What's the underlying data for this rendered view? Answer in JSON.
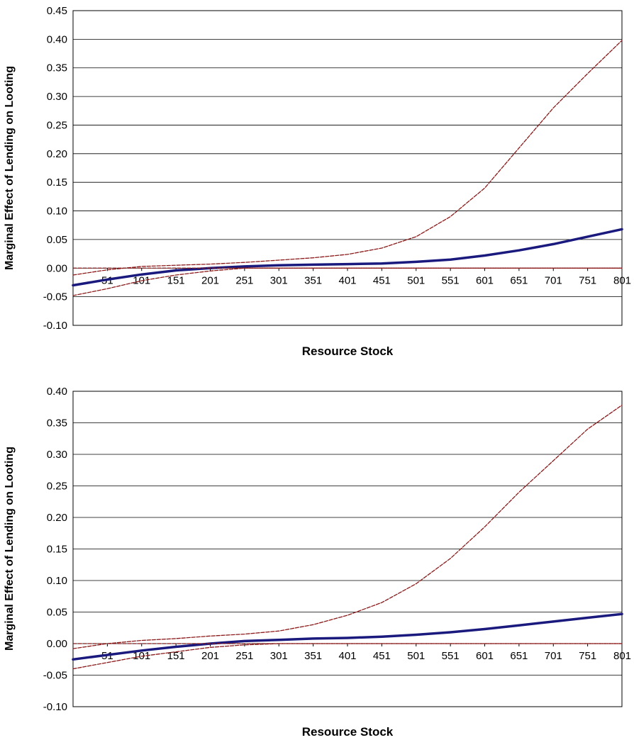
{
  "chart_data": [
    {
      "type": "line",
      "xlabel": "Resource Stock",
      "ylabel": "Marginal Effect of Lending on Looting",
      "ylim": [
        -0.1,
        0.45
      ],
      "xlim": [
        1,
        801
      ],
      "yticks": [
        "-0.10",
        "-0.05",
        "0.00",
        "0.05",
        "0.10",
        "0.15",
        "0.20",
        "0.25",
        "0.30",
        "0.35",
        "0.40",
        "0.45"
      ],
      "xticks": [
        "51",
        "101",
        "151",
        "201",
        "251",
        "301",
        "351",
        "401",
        "451",
        "501",
        "551",
        "601",
        "651",
        "701",
        "751",
        "801"
      ],
      "grid": true,
      "colors": {
        "estimate": "#1a1a7e",
        "bounds": "#8b1a1a"
      },
      "x": [
        1,
        51,
        101,
        151,
        201,
        251,
        301,
        351,
        401,
        451,
        501,
        551,
        601,
        651,
        701,
        751,
        801
      ],
      "series": [
        {
          "role": "estimate",
          "values": [
            -0.03,
            -0.02,
            -0.011,
            -0.004,
            0.0,
            0.003,
            0.005,
            0.006,
            0.007,
            0.008,
            0.011,
            0.015,
            0.022,
            0.031,
            0.042,
            0.055,
            0.068
          ]
        },
        {
          "role": "upper-bound",
          "values": [
            -0.012,
            -0.003,
            0.003,
            0.005,
            0.007,
            0.01,
            0.014,
            0.018,
            0.024,
            0.035,
            0.055,
            0.09,
            0.14,
            0.21,
            0.28,
            0.34,
            0.398
          ]
        },
        {
          "role": "lower-bound",
          "values": [
            -0.048,
            -0.036,
            -0.022,
            -0.012,
            -0.005,
            0.0,
            0.0,
            0.0,
            0.0,
            0.0,
            0.0,
            0.0,
            0.0,
            0.0,
            0.0,
            0.0,
            0.0
          ]
        }
      ]
    },
    {
      "type": "line",
      "xlabel": "Resource Stock",
      "ylabel": "Marginal Effect of Lending on Looting",
      "ylim": [
        -0.1,
        0.4
      ],
      "xlim": [
        1,
        801
      ],
      "yticks": [
        "-0.10",
        "-0.05",
        "0.00",
        "0.05",
        "0.10",
        "0.15",
        "0.20",
        "0.25",
        "0.30",
        "0.35",
        "0.40"
      ],
      "xticks": [
        "51",
        "101",
        "151",
        "201",
        "251",
        "301",
        "351",
        "401",
        "451",
        "501",
        "551",
        "601",
        "651",
        "701",
        "751",
        "801"
      ],
      "grid": true,
      "colors": {
        "estimate": "#1a1a7e",
        "bounds": "#8b1a1a"
      },
      "x": [
        1,
        51,
        101,
        151,
        201,
        251,
        301,
        351,
        401,
        451,
        501,
        551,
        601,
        651,
        701,
        751,
        801
      ],
      "series": [
        {
          "role": "estimate",
          "values": [
            -0.025,
            -0.018,
            -0.011,
            -0.005,
            0.0,
            0.004,
            0.006,
            0.008,
            0.009,
            0.011,
            0.014,
            0.018,
            0.023,
            0.029,
            0.035,
            0.041,
            0.047
          ]
        },
        {
          "role": "upper-bound",
          "values": [
            -0.008,
            0.0,
            0.005,
            0.008,
            0.012,
            0.015,
            0.02,
            0.03,
            0.045,
            0.065,
            0.095,
            0.135,
            0.185,
            0.24,
            0.29,
            0.34,
            0.378
          ]
        },
        {
          "role": "lower-bound",
          "values": [
            -0.04,
            -0.03,
            -0.02,
            -0.013,
            -0.006,
            -0.002,
            0.0,
            0.0,
            0.0,
            0.0,
            0.0,
            0.0,
            0.0,
            0.0,
            0.0,
            0.0,
            0.0
          ]
        }
      ]
    }
  ]
}
